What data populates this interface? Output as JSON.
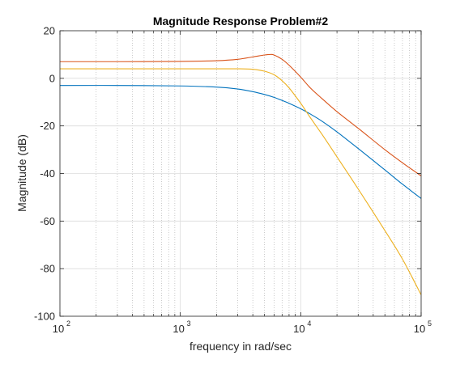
{
  "chart_data": {
    "type": "line",
    "title": "Magnitude Response Problem#2",
    "xlabel": "frequency in rad/sec",
    "ylabel": "Magnitude (dB)",
    "x_scale": "log",
    "xlim": [
      100,
      100000
    ],
    "ylim": [
      -100,
      20
    ],
    "x_ticks": [
      {
        "value": 100,
        "base": "10",
        "exp": "2"
      },
      {
        "value": 1000,
        "base": "10",
        "exp": "3"
      },
      {
        "value": 10000,
        "base": "10",
        "exp": "4"
      },
      {
        "value": 100000,
        "base": "10",
        "exp": "5"
      }
    ],
    "y_ticks": [
      20,
      0,
      -20,
      -40,
      -60,
      -80,
      -100
    ],
    "grid": true,
    "series": [
      {
        "color": "#0072BD",
        "x": [
          100,
          300,
          1000,
          2000,
          3000,
          4000,
          5000,
          6000,
          7000,
          8000,
          10000,
          12000,
          15000,
          20000,
          30000,
          50000,
          70000,
          100000
        ],
        "y": [
          -3.0,
          -3.0,
          -3.2,
          -3.7,
          -4.5,
          -5.6,
          -6.8,
          -8.0,
          -9.3,
          -10.5,
          -12.8,
          -15.0,
          -18.0,
          -22.5,
          -29.5,
          -38.5,
          -44.5,
          -50.5
        ]
      },
      {
        "color": "#D95319",
        "x": [
          100,
          300,
          1000,
          2000,
          3000,
          4000,
          5000,
          5500,
          6000,
          7000,
          8000,
          10000,
          12000,
          15000,
          20000,
          30000,
          50000,
          70000,
          100000
        ],
        "y": [
          7.0,
          7.0,
          7.1,
          7.4,
          8.0,
          9.0,
          9.8,
          10.0,
          9.8,
          8.0,
          5.5,
          0.5,
          -4.0,
          -8.5,
          -14.0,
          -21.0,
          -30.0,
          -35.5,
          -41.0
        ]
      },
      {
        "color": "#EDB120",
        "x": [
          100,
          1000,
          2000,
          3000,
          4000,
          5000,
          6000,
          7000,
          8000,
          10000,
          12000,
          15000,
          20000,
          30000,
          50000,
          70000,
          100000
        ],
        "y": [
          4.0,
          4.0,
          4.0,
          4.0,
          3.8,
          3.0,
          1.5,
          -1.0,
          -4.0,
          -10.5,
          -16.5,
          -23.5,
          -33.0,
          -46.5,
          -64.0,
          -76.0,
          -91.0
        ]
      }
    ]
  }
}
